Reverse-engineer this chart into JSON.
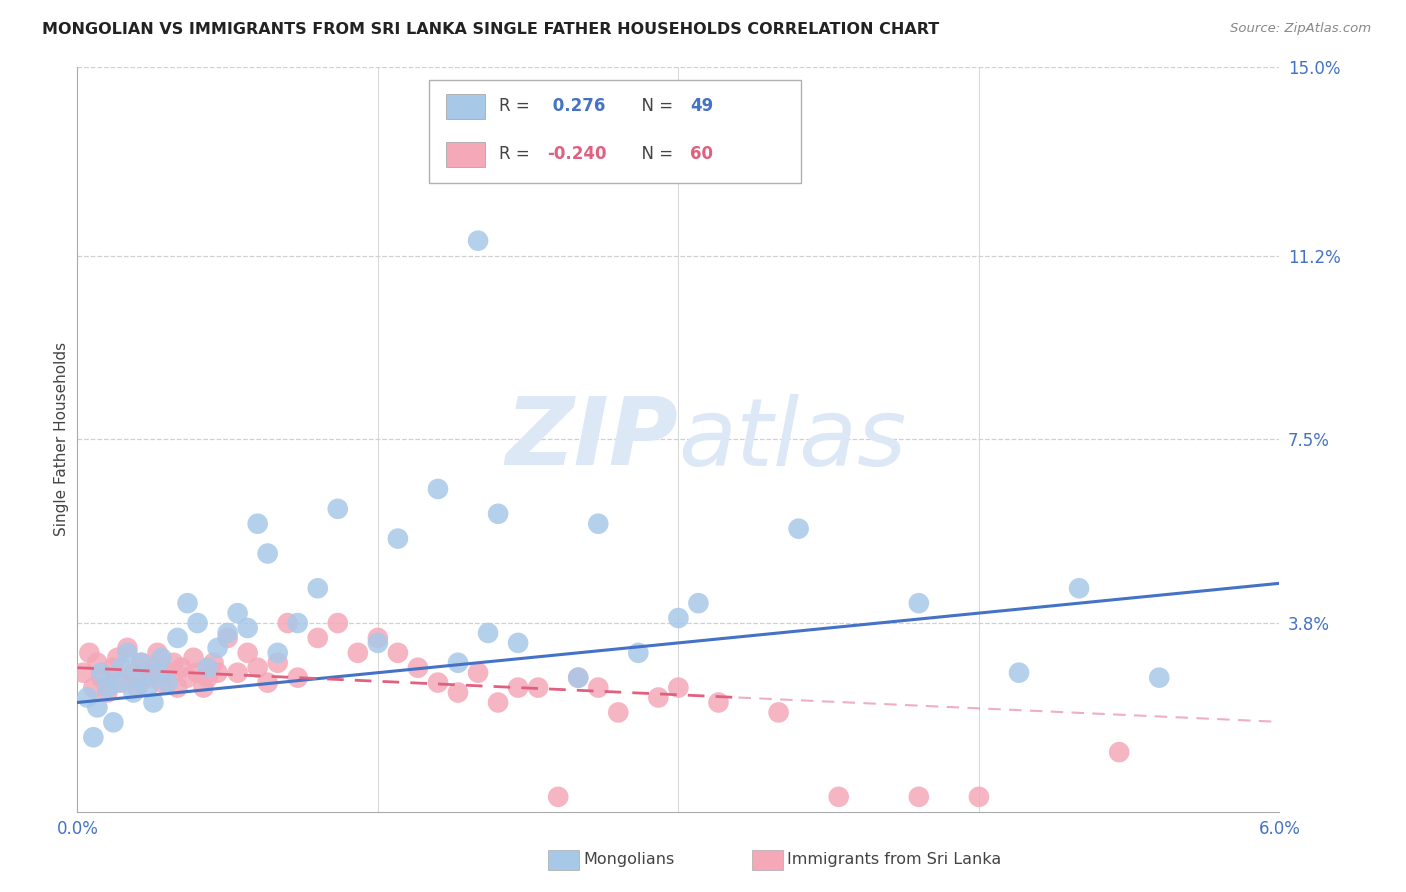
{
  "title": "MONGOLIAN VS IMMIGRANTS FROM SRI LANKA SINGLE FATHER HOUSEHOLDS CORRELATION CHART",
  "source": "Source: ZipAtlas.com",
  "ylabel": "Single Father Households",
  "right_yticks": [
    3.8,
    7.5,
    11.2,
    15.0
  ],
  "right_ytick_labels": [
    "3.8%",
    "7.5%",
    "11.2%",
    "15.0%"
  ],
  "xmin": 0.0,
  "xmax": 6.0,
  "ymin": 0.0,
  "ymax": 15.0,
  "mongolian_color": "#a8c8e8",
  "srilanka_color": "#f4a8b8",
  "trend_mongolian_color": "#4472c4",
  "trend_srilanka_color": "#e06080",
  "watermark_zip": "ZIP",
  "watermark_atlas": "atlas",
  "watermark_color": "#dce8f5",
  "background_color": "#ffffff",
  "grid_color": "#d0d0d0",
  "legend_r1": "R = ",
  "legend_v1": " 0.276",
  "legend_n1_label": "N = ",
  "legend_n1": "49",
  "legend_r2": "R = ",
  "legend_v2": "-0.240",
  "legend_n2_label": "N = ",
  "legend_n2": "60",
  "legend_color_blue": "#4472c4",
  "legend_color_pink": "#e06080",
  "trend_mong_x0": 0.0,
  "trend_mong_x1": 6.0,
  "trend_mong_y0": 2.2,
  "trend_mong_y1": 4.6,
  "trend_sl_x0": 0.0,
  "trend_sl_x1": 3.3,
  "trend_sl_y0": 2.9,
  "trend_sl_y1": 2.3,
  "mong_x": [
    0.05,
    0.08,
    0.1,
    0.12,
    0.15,
    0.18,
    0.2,
    0.22,
    0.25,
    0.28,
    0.3,
    0.32,
    0.35,
    0.38,
    0.4,
    0.42,
    0.45,
    0.5,
    0.55,
    0.6,
    0.65,
    0.7,
    0.75,
    0.8,
    0.85,
    0.9,
    0.95,
    1.0,
    1.1,
    1.2,
    1.3,
    1.5,
    1.6,
    1.8,
    1.9,
    2.0,
    2.05,
    2.1,
    2.2,
    2.5,
    2.6,
    2.8,
    3.0,
    3.1,
    3.6,
    4.2,
    4.7,
    5.0,
    5.4
  ],
  "mong_y": [
    2.3,
    1.5,
    2.1,
    2.8,
    2.5,
    1.8,
    2.6,
    2.9,
    3.2,
    2.4,
    2.7,
    3.0,
    2.5,
    2.2,
    2.8,
    3.1,
    2.6,
    3.5,
    4.2,
    3.8,
    2.9,
    3.3,
    3.6,
    4.0,
    3.7,
    5.8,
    5.2,
    3.2,
    3.8,
    4.5,
    6.1,
    3.4,
    5.5,
    6.5,
    3.0,
    11.5,
    3.6,
    6.0,
    3.4,
    2.7,
    5.8,
    3.2,
    3.9,
    4.2,
    5.7,
    4.2,
    2.8,
    4.5,
    2.7
  ],
  "sl_x": [
    0.03,
    0.06,
    0.08,
    0.1,
    0.12,
    0.15,
    0.18,
    0.2,
    0.22,
    0.25,
    0.28,
    0.3,
    0.32,
    0.35,
    0.38,
    0.4,
    0.42,
    0.45,
    0.48,
    0.5,
    0.52,
    0.55,
    0.58,
    0.6,
    0.63,
    0.65,
    0.68,
    0.7,
    0.75,
    0.8,
    0.85,
    0.9,
    0.95,
    1.0,
    1.05,
    1.1,
    1.2,
    1.3,
    1.4,
    1.5,
    1.6,
    1.7,
    1.8,
    1.9,
    2.0,
    2.1,
    2.2,
    2.3,
    2.4,
    2.5,
    2.6,
    2.7,
    2.9,
    3.0,
    3.2,
    3.5,
    3.8,
    4.2,
    4.5,
    5.2
  ],
  "sl_y": [
    2.8,
    3.2,
    2.5,
    3.0,
    2.7,
    2.4,
    2.9,
    3.1,
    2.6,
    3.3,
    2.8,
    2.5,
    3.0,
    2.7,
    2.9,
    3.2,
    2.6,
    2.8,
    3.0,
    2.5,
    2.9,
    2.7,
    3.1,
    2.8,
    2.5,
    2.7,
    3.0,
    2.8,
    3.5,
    2.8,
    3.2,
    2.9,
    2.6,
    3.0,
    3.8,
    2.7,
    3.5,
    3.8,
    3.2,
    3.5,
    3.2,
    2.9,
    2.6,
    2.4,
    2.8,
    2.2,
    2.5,
    2.5,
    0.3,
    2.7,
    2.5,
    2.0,
    2.3,
    2.5,
    2.2,
    2.0,
    0.3,
    0.3,
    0.3,
    1.2
  ]
}
